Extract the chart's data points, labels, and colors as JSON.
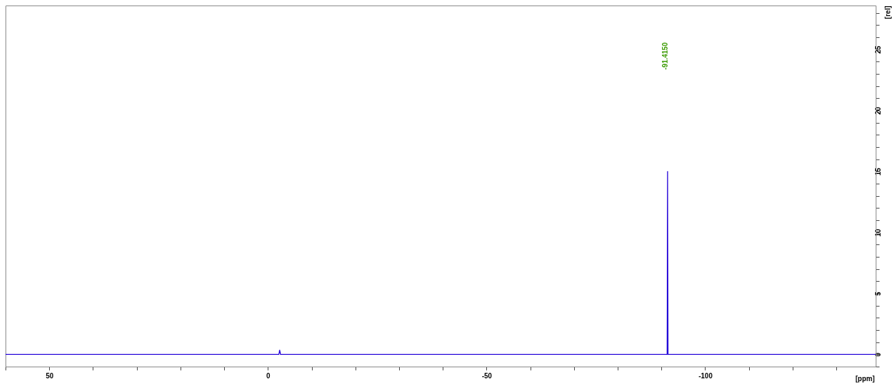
{
  "chart_data": {
    "type": "line",
    "xlabel": "[ppm]",
    "ylabel": "[rel]",
    "x": [
      60,
      20,
      -2.5,
      -2.7,
      -2.9,
      -40,
      -91.3,
      -91.415,
      -91.5,
      -110,
      -139
    ],
    "series": [
      {
        "color": "#2200d8",
        "values": [
          0,
          0,
          0,
          0.35,
          0,
          0,
          0,
          15,
          0,
          0,
          0
        ]
      }
    ],
    "xlim": [
      60,
      -139
    ],
    "xticks": [
      {
        "value": 60,
        "label": null
      },
      50,
      {
        "value": 40,
        "label": null
      },
      {
        "value": 30,
        "label": null
      },
      {
        "value": 20,
        "label": null
      },
      {
        "value": 10,
        "label": null
      },
      0,
      {
        "value": -10,
        "label": null
      },
      {
        "value": -20,
        "label": null
      },
      {
        "value": -30,
        "label": null
      },
      {
        "value": -40,
        "label": null
      },
      -50,
      {
        "value": -60,
        "label": null
      },
      {
        "value": -70,
        "label": null
      },
      {
        "value": -80,
        "label": null
      },
      {
        "value": -90,
        "label": null
      },
      -100,
      {
        "value": -110,
        "label": null
      },
      {
        "value": -120,
        "label": null
      },
      {
        "value": -130,
        "label": null
      }
    ],
    "ylim": [
      -1,
      28.6
    ],
    "yticks": [
      {
        "value": -1,
        "label": null
      },
      0,
      {
        "value": 1,
        "label": null
      },
      {
        "value": 2,
        "label": null
      },
      {
        "value": 3,
        "label": null
      },
      {
        "value": 4,
        "label": null
      },
      5,
      {
        "value": 6,
        "label": null
      },
      {
        "value": 7,
        "label": null
      },
      {
        "value": 8,
        "label": null
      },
      {
        "value": 9,
        "label": null
      },
      10,
      {
        "value": 11,
        "label": null
      },
      {
        "value": 12,
        "label": null
      },
      {
        "value": 13,
        "label": null
      },
      {
        "value": 14,
        "label": null
      },
      15,
      {
        "value": 16,
        "label": null
      },
      {
        "value": 17,
        "label": null
      },
      {
        "value": 18,
        "label": null
      },
      {
        "value": 19,
        "label": null
      },
      20,
      {
        "value": 21,
        "label": null
      },
      {
        "value": 22,
        "label": null
      },
      {
        "value": 23,
        "label": null
      },
      {
        "value": 24,
        "label": null
      },
      25,
      {
        "value": 26,
        "label": null
      },
      {
        "value": 27,
        "label": null
      },
      {
        "value": 28,
        "label": null
      }
    ],
    "annotations": [
      "-91.4150"
    ],
    "grid": false,
    "marker": "none"
  }
}
